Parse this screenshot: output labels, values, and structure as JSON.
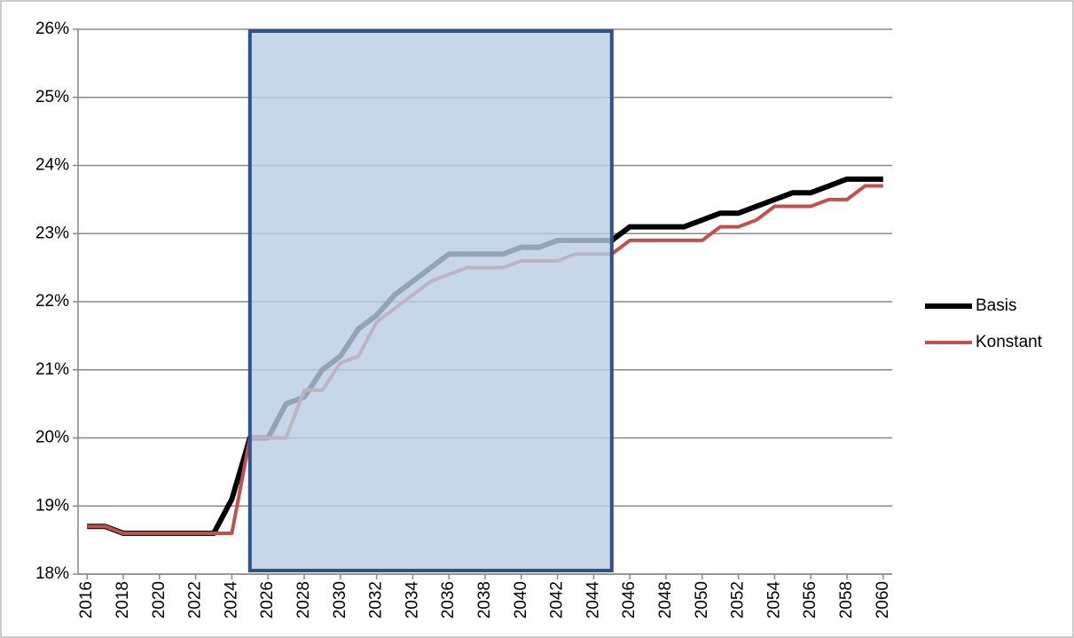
{
  "chart_data": {
    "type": "line",
    "x": [
      2016,
      2017,
      2018,
      2019,
      2020,
      2021,
      2022,
      2023,
      2024,
      2025,
      2026,
      2027,
      2028,
      2029,
      2030,
      2031,
      2032,
      2033,
      2034,
      2035,
      2036,
      2037,
      2038,
      2039,
      2040,
      2041,
      2042,
      2043,
      2044,
      2045,
      2046,
      2047,
      2048,
      2049,
      2050,
      2051,
      2052,
      2053,
      2054,
      2055,
      2056,
      2057,
      2058,
      2059,
      2060
    ],
    "series": [
      {
        "name": "Basis",
        "color": "#000000",
        "values": [
          18.7,
          18.7,
          18.6,
          18.6,
          18.6,
          18.6,
          18.6,
          18.6,
          19.1,
          20.0,
          20.0,
          20.5,
          20.6,
          21.0,
          21.2,
          21.6,
          21.8,
          22.1,
          22.3,
          22.5,
          22.7,
          22.7,
          22.7,
          22.7,
          22.8,
          22.8,
          22.9,
          22.9,
          22.9,
          22.9,
          23.1,
          23.1,
          23.1,
          23.1,
          23.2,
          23.3,
          23.3,
          23.4,
          23.5,
          23.6,
          23.6,
          23.7,
          23.8,
          23.8,
          23.8
        ]
      },
      {
        "name": "Konstant",
        "color": "#c0504d",
        "values": [
          18.7,
          18.7,
          18.6,
          18.6,
          18.6,
          18.6,
          18.6,
          18.6,
          18.6,
          20.0,
          20.0,
          20.0,
          20.7,
          20.7,
          21.1,
          21.2,
          21.7,
          21.9,
          22.1,
          22.3,
          22.4,
          22.5,
          22.5,
          22.5,
          22.6,
          22.6,
          22.6,
          22.7,
          22.7,
          22.7,
          22.9,
          22.9,
          22.9,
          22.9,
          22.9,
          23.1,
          23.1,
          23.2,
          23.4,
          23.4,
          23.4,
          23.5,
          23.5,
          23.7,
          23.7
        ]
      }
    ],
    "xlim": [
      2015.5,
      2060.5
    ],
    "xticks": [
      2016,
      2018,
      2020,
      2022,
      2024,
      2026,
      2028,
      2030,
      2032,
      2034,
      2036,
      2038,
      2040,
      2042,
      2044,
      2046,
      2048,
      2050,
      2052,
      2054,
      2056,
      2058,
      2060
    ],
    "ylim": [
      18,
      26
    ],
    "yticks": [
      {
        "value": 18,
        "label": "18%"
      },
      {
        "value": 19,
        "label": "19%"
      },
      {
        "value": 20,
        "label": "20%"
      },
      {
        "value": 21,
        "label": "21%"
      },
      {
        "value": 22,
        "label": "22%"
      },
      {
        "value": 23,
        "label": "23%"
      },
      {
        "value": 24,
        "label": "24%"
      },
      {
        "value": 25,
        "label": "25%"
      },
      {
        "value": 26,
        "label": "26%"
      }
    ],
    "grid": true,
    "legend": "right",
    "highlight_range": [
      2025,
      2045
    ]
  }
}
